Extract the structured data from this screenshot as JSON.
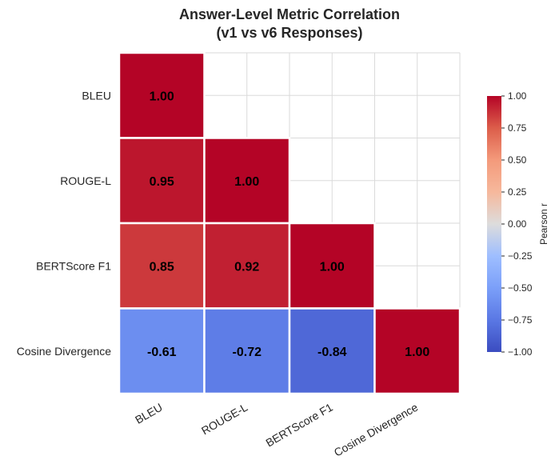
{
  "chart_data": {
    "type": "heatmap",
    "title_lines": [
      "Answer-Level Metric Correlation",
      "(v1 vs v6 Responses)"
    ],
    "row_labels": [
      "BLEU",
      "ROUGE-L",
      "BERTScore F1",
      "Cosine Divergence"
    ],
    "col_labels": [
      "BLEU",
      "ROUGE-L",
      "BERTScore F1",
      "Cosine Divergence"
    ],
    "values": [
      [
        1.0,
        null,
        null,
        null
      ],
      [
        0.95,
        1.0,
        null,
        null
      ],
      [
        0.85,
        0.92,
        1.0,
        null
      ],
      [
        -0.61,
        -0.72,
        -0.84,
        1.0
      ]
    ],
    "cell_labels": [
      [
        "1.00",
        "",
        "",
        ""
      ],
      [
        "0.95",
        "1.00",
        "",
        ""
      ],
      [
        "0.85",
        "0.92",
        "1.00",
        ""
      ],
      [
        "-0.61",
        "-0.72",
        "-0.84",
        "1.00"
      ]
    ],
    "mask": "upper triangle above diagonal",
    "colormap": "coolwarm",
    "vmin": -1.0,
    "vmax": 1.0,
    "colorbar": {
      "label": "Pearson r",
      "ticks": [
        "1.00",
        "0.75",
        "0.50",
        "0.25",
        "0.00",
        "−0.25",
        "−0.50",
        "−0.75",
        "−1.00"
      ],
      "tick_values": [
        1.0,
        0.75,
        0.5,
        0.25,
        0.0,
        -0.25,
        -0.5,
        -0.75,
        -1.0
      ]
    },
    "grid": true
  }
}
